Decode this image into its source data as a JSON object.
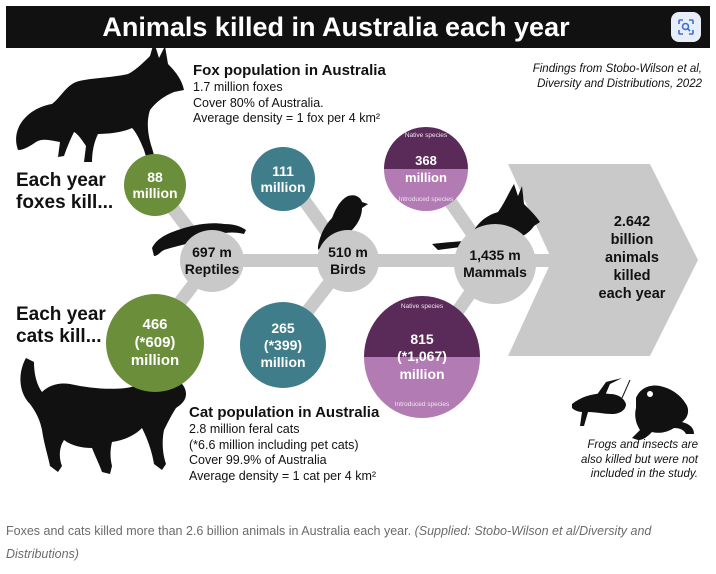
{
  "header": {
    "title": "Animals killed in Australia each year"
  },
  "source": {
    "line1": "Findings from Stobo-Wilson et al,",
    "line2": "Diversity and Distributions, 2022"
  },
  "fox_info": {
    "heading": "Fox population in Australia",
    "line1": "1.7 million foxes",
    "line2": "Cover 80% of Australia.",
    "line3": "Average density = 1 fox per 4 km²"
  },
  "cat_info": {
    "heading": "Cat population in Australia",
    "line1": "2.8 million feral cats",
    "line2": "(*6.6 million including pet cats)",
    "line3": "Cover 99.9% of Australia",
    "line4": "Average density = 1 cat per 4 km²"
  },
  "labels": {
    "foxes_1": "Each year",
    "foxes_2": "foxes kill...",
    "cats_1": "Each year",
    "cats_2": "cats kill..."
  },
  "fox_kills": {
    "reptiles_1": "88",
    "reptiles_2": "million",
    "birds_1": "111",
    "birds_2": "million",
    "mammals_tag_top": "Native species",
    "mammals_1": "368",
    "mammals_2": "million",
    "mammals_tag_bottom": "Introduced species"
  },
  "cat_kills": {
    "reptiles_1": "466",
    "reptiles_2": "(*609)",
    "reptiles_3": "million",
    "birds_1": "265",
    "birds_2": "(*399)",
    "birds_3": "million",
    "mammals_tag_top": "Native species",
    "mammals_1": "815",
    "mammals_2": "(*1,067)",
    "mammals_3": "million",
    "mammals_tag_bottom": "Introduced species"
  },
  "totals": {
    "reptiles_1": "697 m",
    "reptiles_2": "Reptiles",
    "birds_1": "510 m",
    "birds_2": "Birds",
    "mammals_1": "1,435 m",
    "mammals_2": "Mammals",
    "grand_1": "2.642",
    "grand_2": "billion",
    "grand_3": "animals",
    "grand_4": "killed",
    "grand_5": "each year"
  },
  "footnote": {
    "line1": "Frogs and insects are",
    "line2": "also killed but were not",
    "line3": "included in the study."
  },
  "caption": {
    "text": "Foxes and cats killed more than 2.6 billion animals in Australia each year.",
    "credit": "(Supplied: Stobo-Wilson et al/Diversity and Distributions)"
  },
  "colors": {
    "title_bg": "#111111",
    "green": "#6b8e3a",
    "teal": "#3f7d8a",
    "purple_dark": "#5a2a59",
    "purple_light": "#b27bb4",
    "gray": "#c9c9c9"
  },
  "icons": {
    "fox": "fox-silhouette",
    "cat": "cat-silhouette",
    "lizard": "lizard-silhouette",
    "bird": "bird-silhouette",
    "bilby": "bilby-silhouette",
    "grasshopper": "grasshopper-silhouette",
    "frog": "frog-silhouette",
    "lens": "visual-search-icon"
  }
}
